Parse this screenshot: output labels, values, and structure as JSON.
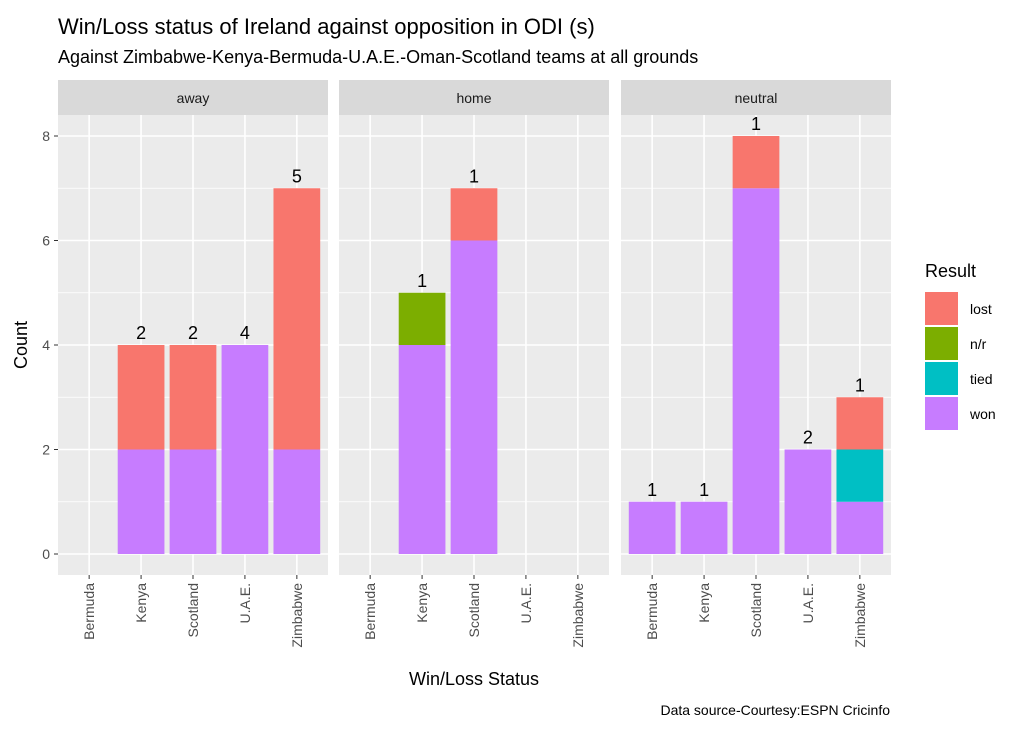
{
  "chart_data": {
    "type": "bar",
    "stacked": true,
    "faceted": true,
    "title": "Win/Loss status of Ireland against opposition in ODI (s)",
    "subtitle": "Against Zimbabwe-Kenya-Bermuda-U.A.E.-Oman-Scotland  teams at all grounds",
    "xlabel": "Win/Loss Status",
    "ylabel": "Count",
    "caption": "Data source-Courtesy:ESPN Cricinfo",
    "ylim": [
      0,
      8
    ],
    "yticks": [
      0,
      2,
      4,
      6,
      8
    ],
    "grid": true,
    "categories": [
      "Bermuda",
      "Kenya",
      "Scotland",
      "U.A.E.",
      "Zimbabwe"
    ],
    "legend": {
      "title": "Result",
      "position": "right",
      "entries": [
        {
          "name": "lost",
          "color": "#F8766D"
        },
        {
          "name": "n/r",
          "color": "#7CAE00"
        },
        {
          "name": "tied",
          "color": "#00BFC4"
        },
        {
          "name": "won",
          "color": "#C77CFF"
        }
      ]
    },
    "stack_order": [
      "won",
      "tied",
      "n/r",
      "lost"
    ],
    "facets": [
      {
        "name": "away",
        "series": [
          {
            "name": "won",
            "values": [
              0,
              2,
              2,
              4,
              2
            ]
          },
          {
            "name": "tied",
            "values": [
              0,
              0,
              0,
              0,
              0
            ]
          },
          {
            "name": "n/r",
            "values": [
              0,
              0,
              0,
              0,
              0
            ]
          },
          {
            "name": "lost",
            "values": [
              0,
              2,
              2,
              0,
              5
            ]
          }
        ]
      },
      {
        "name": "home",
        "series": [
          {
            "name": "won",
            "values": [
              0,
              4,
              6,
              0,
              0
            ]
          },
          {
            "name": "tied",
            "values": [
              0,
              0,
              0,
              0,
              0
            ]
          },
          {
            "name": "n/r",
            "values": [
              0,
              1,
              0,
              0,
              0
            ]
          },
          {
            "name": "lost",
            "values": [
              0,
              0,
              1,
              0,
              0
            ]
          }
        ]
      },
      {
        "name": "neutral",
        "series": [
          {
            "name": "won",
            "values": [
              1,
              1,
              7,
              2,
              1
            ]
          },
          {
            "name": "tied",
            "values": [
              0,
              0,
              0,
              0,
              1
            ]
          },
          {
            "name": "n/r",
            "values": [
              0,
              0,
              0,
              0,
              0
            ]
          },
          {
            "name": "lost",
            "values": [
              0,
              0,
              1,
              0,
              1
            ]
          }
        ]
      }
    ]
  },
  "colors": {
    "panel_background": "#EBEBEB",
    "strip_background": "#D9D9D9",
    "grid": "#FFFFFF"
  }
}
